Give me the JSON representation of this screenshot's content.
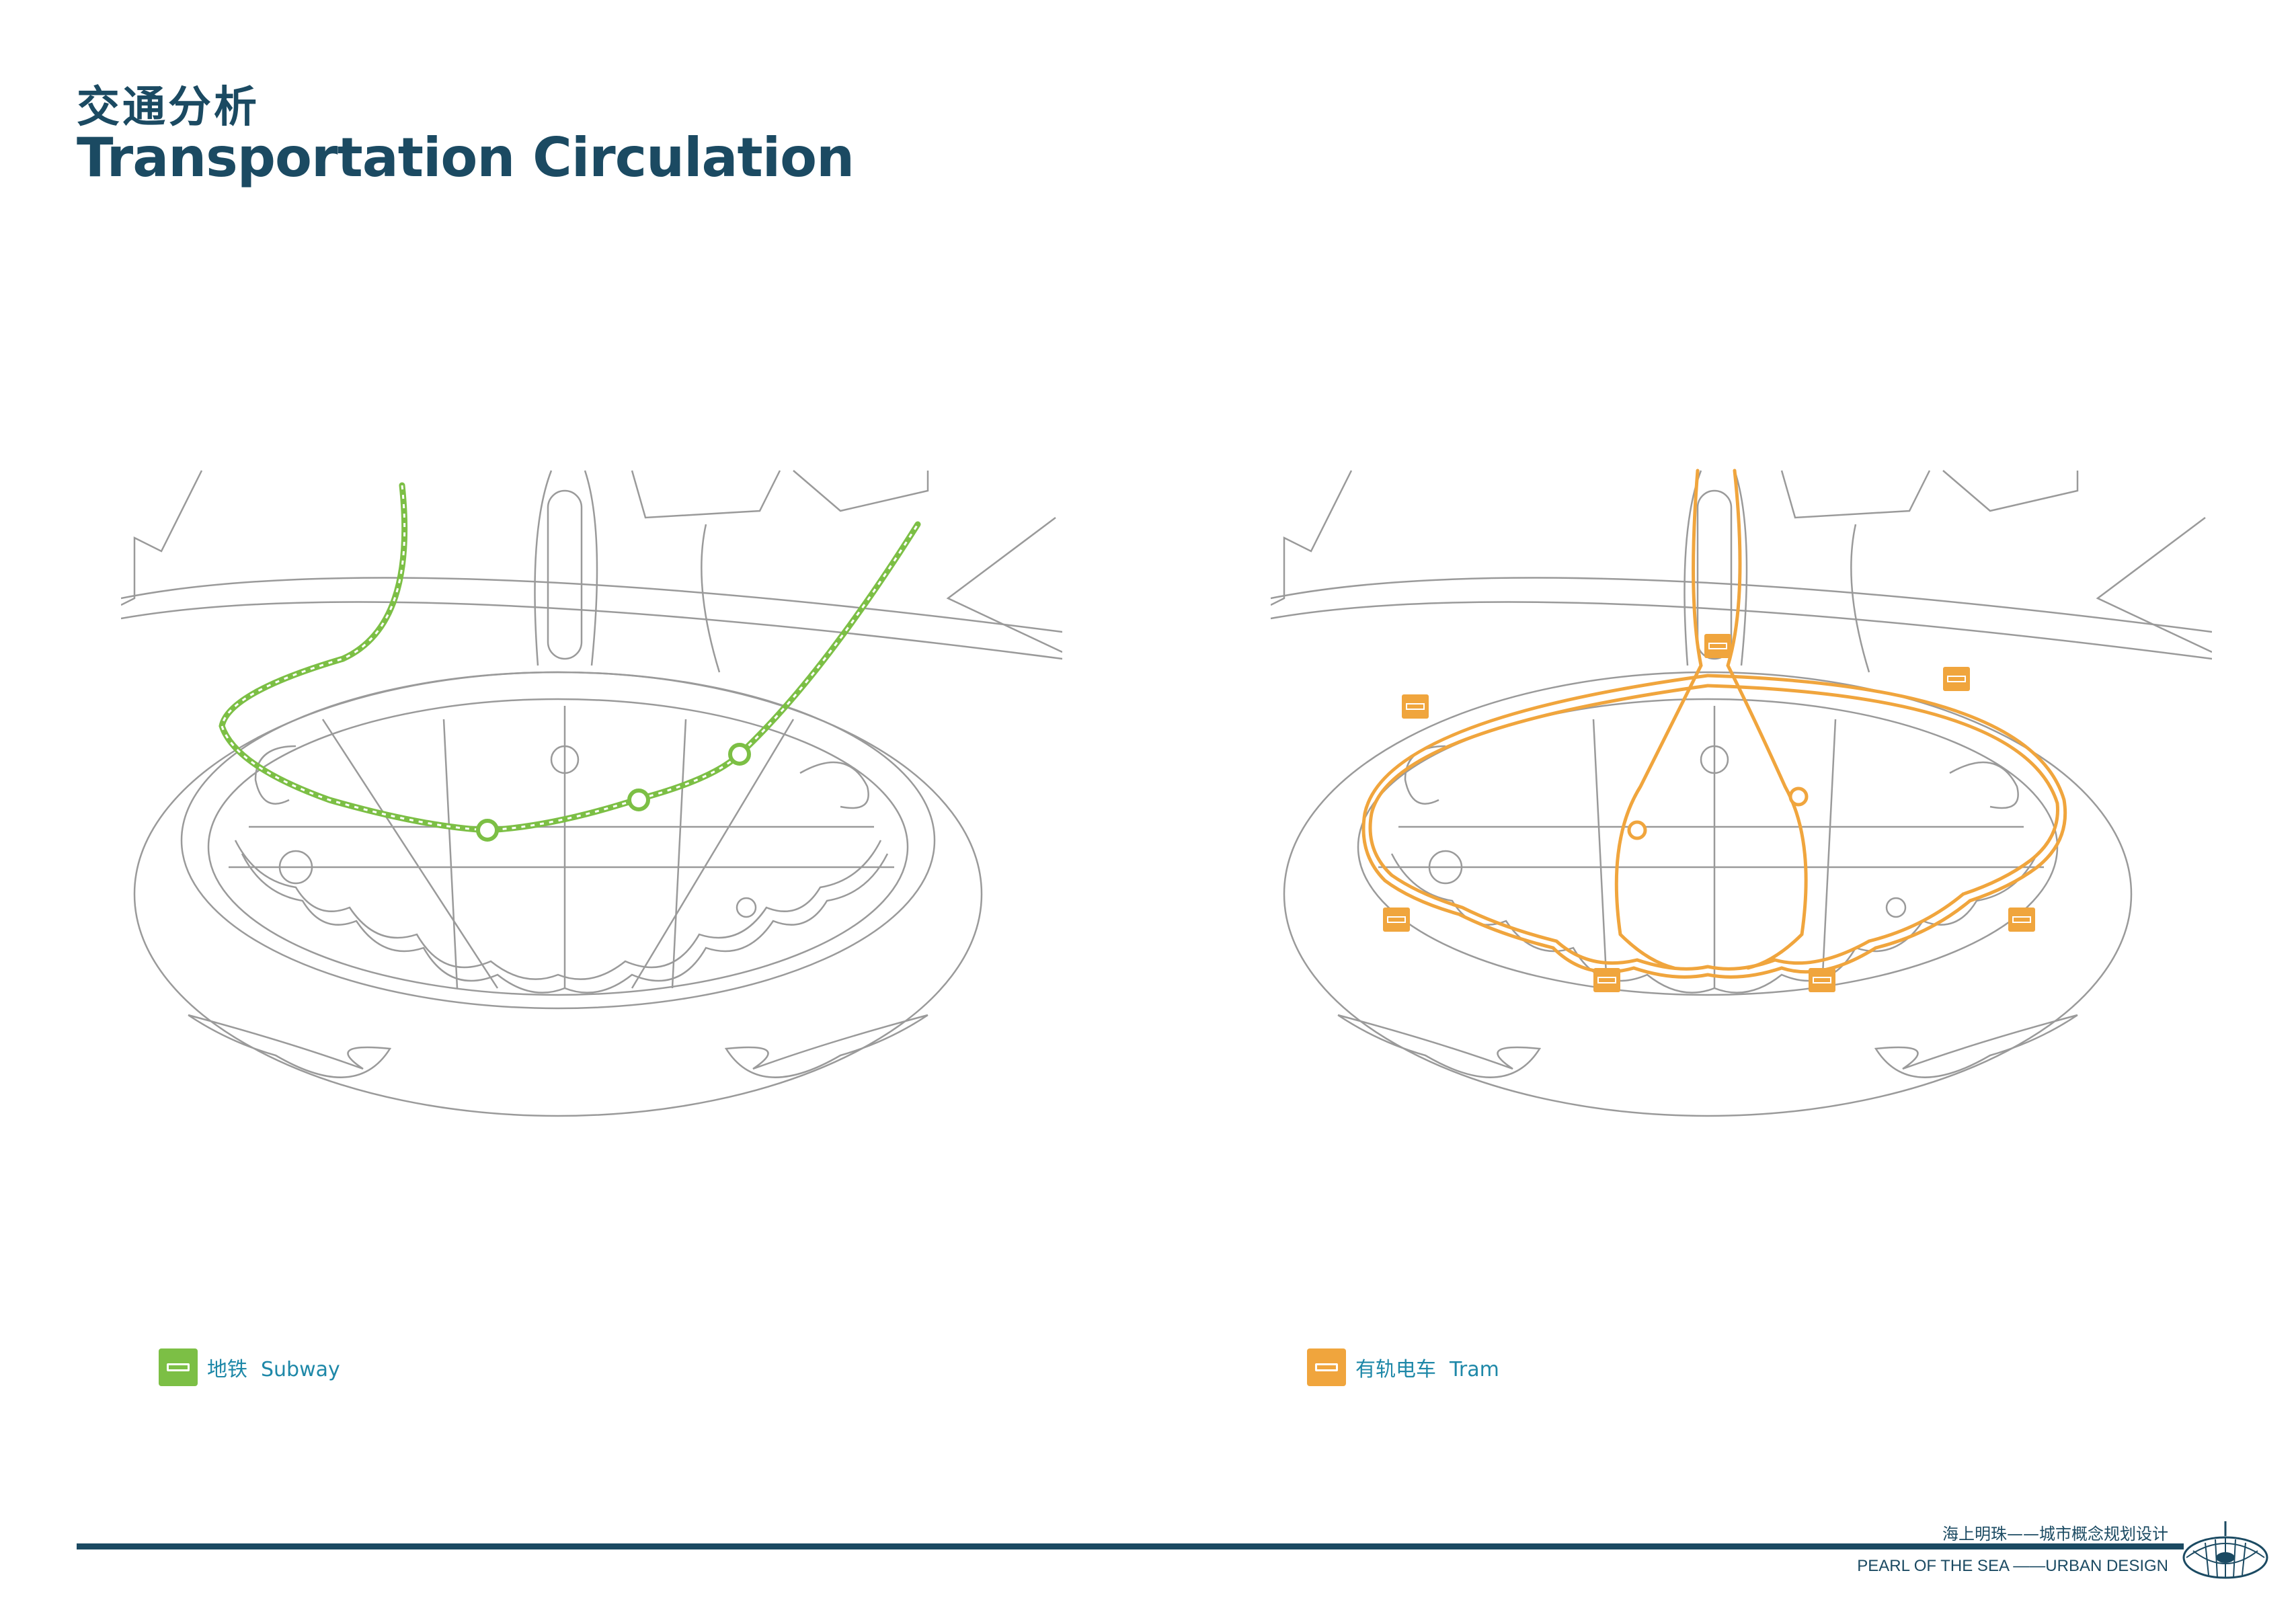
{
  "page": {
    "title_cn": "交通分析",
    "title_en": "Transportation Circulation"
  },
  "legend": {
    "subway": {
      "label_cn": "地铁",
      "label_en": "Subway",
      "color": "#7cbf45",
      "icon": "train-icon"
    },
    "tram": {
      "label_cn": "有轨电车",
      "label_en": "Tram",
      "color": "#f0a53d",
      "icon": "tram-icon"
    }
  },
  "footer": {
    "project_cn": "海上明珠——城市概念规划设计",
    "project_en": "PEARL OF THE SEA ——URBAN DESIGN"
  },
  "colors": {
    "brand": "#1b4a62",
    "road_stroke": "#9a9a9a",
    "subway": "#7cbf45",
    "tram": "#f0a53d"
  }
}
